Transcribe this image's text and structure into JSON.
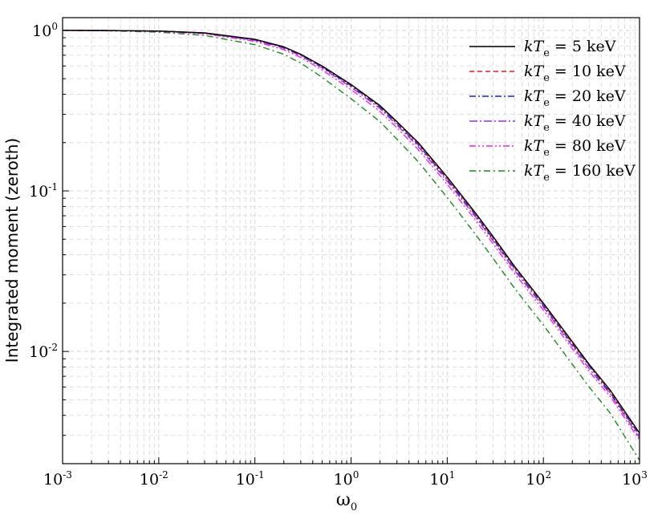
{
  "chart_data": {
    "type": "line",
    "title": "",
    "xlabel": "ω",
    "xlabel_sub": "0",
    "ylabel": "Integrated moment (zeroth)",
    "xscale": "log",
    "yscale": "log",
    "xlim": [
      0.001,
      1000
    ],
    "ylim": [
      0.002,
      1.2
    ],
    "grid": true,
    "legend_position": "top-right",
    "x_ticks": [
      {
        "base": "10",
        "exp": "-3"
      },
      {
        "base": "10",
        "exp": "-2"
      },
      {
        "base": "10",
        "exp": "-1"
      },
      {
        "base": "10",
        "exp": "0"
      },
      {
        "base": "10",
        "exp": "1"
      },
      {
        "base": "10",
        "exp": "2"
      },
      {
        "base": "10",
        "exp": "3"
      }
    ],
    "y_ticks": [
      {
        "base": "10",
        "exp": "0"
      },
      {
        "base": "10",
        "exp": "-1"
      },
      {
        "base": "10",
        "exp": "-2"
      }
    ],
    "x": [
      0.001,
      0.003,
      0.01,
      0.03,
      0.1,
      0.2,
      0.3,
      0.5,
      1,
      2,
      3,
      5,
      10,
      20,
      30,
      50,
      100,
      200,
      300,
      500,
      1000
    ],
    "series": [
      {
        "legend_prefix": "kT",
        "legend_sub": "e",
        "legend_suffix": " = 5 keV",
        "color": "#000000",
        "dash": "",
        "values": [
          1.0,
          0.998,
          0.99,
          0.965,
          0.88,
          0.79,
          0.71,
          0.6,
          0.46,
          0.34,
          0.27,
          0.2,
          0.122,
          0.072,
          0.052,
          0.034,
          0.02,
          0.0115,
          0.0083,
          0.0057,
          0.0031
        ]
      },
      {
        "legend_prefix": "kT",
        "legend_sub": "e",
        "legend_suffix": " = 10  keV",
        "color": "#e41a1c",
        "dash": "6,4",
        "values": [
          1.0,
          0.998,
          0.99,
          0.963,
          0.878,
          0.787,
          0.707,
          0.597,
          0.457,
          0.337,
          0.267,
          0.197,
          0.12,
          0.071,
          0.051,
          0.0335,
          0.0197,
          0.0113,
          0.0082,
          0.0056,
          0.00305
        ]
      },
      {
        "legend_prefix": "kT",
        "legend_sub": "e",
        "legend_suffix": " = 20 keV",
        "color": "#1f1fcf",
        "dash": "8,3,2,3",
        "values": [
          1.0,
          0.998,
          0.99,
          0.962,
          0.875,
          0.783,
          0.703,
          0.592,
          0.452,
          0.333,
          0.263,
          0.194,
          0.118,
          0.0698,
          0.0502,
          0.033,
          0.0194,
          0.0111,
          0.0081,
          0.0055,
          0.003
        ]
      },
      {
        "legend_prefix": "kT",
        "legend_sub": "e",
        "legend_suffix": " = 40 keV",
        "color": "#9932cc",
        "dash": "10,3,2,3",
        "values": [
          1.0,
          0.997,
          0.988,
          0.958,
          0.868,
          0.774,
          0.694,
          0.583,
          0.443,
          0.326,
          0.257,
          0.189,
          0.115,
          0.068,
          0.049,
          0.032,
          0.0189,
          0.0108,
          0.0078,
          0.0054,
          0.0029
        ]
      },
      {
        "legend_prefix": "kT",
        "legend_sub": "e",
        "legend_suffix": " = 80 keV",
        "color": "#ee22ee",
        "dash": "8,3,2,3,2,3",
        "values": [
          1.0,
          0.996,
          0.985,
          0.952,
          0.855,
          0.758,
          0.678,
          0.567,
          0.428,
          0.313,
          0.247,
          0.181,
          0.11,
          0.065,
          0.0468,
          0.0307,
          0.0181,
          0.0104,
          0.0075,
          0.0052,
          0.0028
        ]
      },
      {
        "legend_prefix": "kT",
        "legend_sub": "e",
        "legend_suffix": " = 160 keV",
        "color": "#1a8c1a",
        "dash": "8,4,2,4",
        "values": [
          1.0,
          0.993,
          0.975,
          0.93,
          0.815,
          0.71,
          0.625,
          0.51,
          0.375,
          0.27,
          0.21,
          0.152,
          0.091,
          0.053,
          0.038,
          0.0248,
          0.0146,
          0.0083,
          0.006,
          0.0041,
          0.0021
        ]
      }
    ]
  }
}
